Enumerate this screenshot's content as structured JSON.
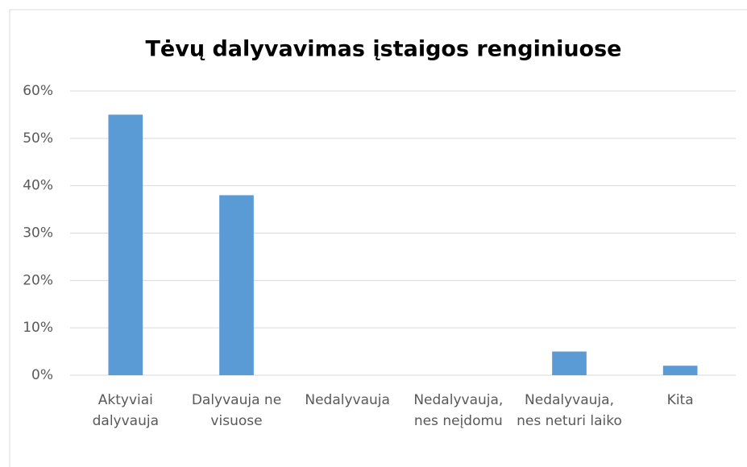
{
  "chart_data": {
    "type": "bar",
    "title": "Tėvų dalyvavimas įstaigos renginiuose",
    "categories": [
      "Aktyviai dalyvauja",
      "Dalyvauja ne visuose",
      "Nedalyvauja",
      "Nedalyvauja, nes neįdomu",
      "Nedalyvauja, nes neturi laiko",
      "Kita"
    ],
    "values": [
      55,
      38,
      0,
      0,
      5,
      2
    ],
    "color": "#5b9bd5",
    "ylim": [
      0,
      60
    ],
    "yticks": [
      {
        "value": 0,
        "label": "0%"
      },
      {
        "value": 10,
        "label": "10%"
      },
      {
        "value": 20,
        "label": "20%"
      },
      {
        "value": 30,
        "label": "30%"
      },
      {
        "value": 40,
        "label": "40%"
      },
      {
        "value": 50,
        "label": "50%"
      },
      {
        "value": 60,
        "label": "60%"
      }
    ],
    "grid": true
  }
}
